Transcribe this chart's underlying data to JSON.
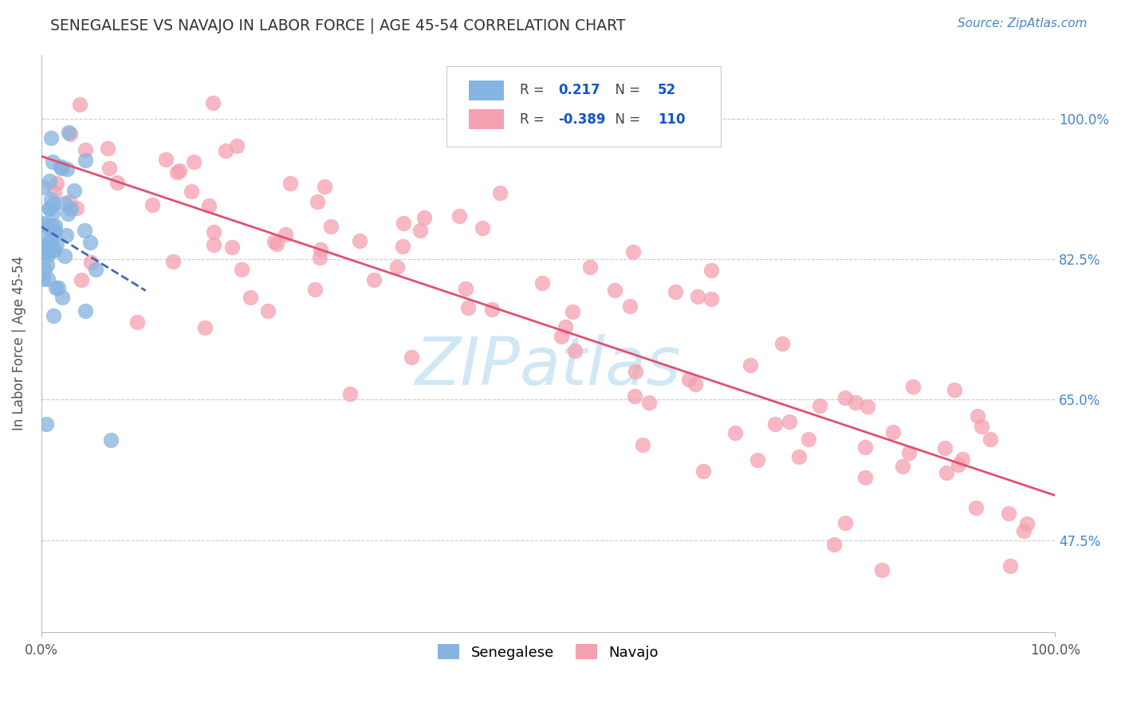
{
  "title": "SENEGALESE VS NAVAJO IN LABOR FORCE | AGE 45-54 CORRELATION CHART",
  "source_text": "Source: ZipAtlas.com",
  "ylabel": "In Labor Force | Age 45-54",
  "xlim": [
    0.0,
    1.0
  ],
  "ylim": [
    0.36,
    1.08
  ],
  "yticks": [
    0.475,
    0.65,
    0.825,
    1.0
  ],
  "ytick_labels": [
    "47.5%",
    "65.0%",
    "82.5%",
    "100.0%"
  ],
  "xtick_labels": [
    "0.0%",
    "100.0%"
  ],
  "xticks": [
    0.0,
    1.0
  ],
  "legend_r_senegalese": "0.217",
  "legend_n_senegalese": "52",
  "legend_r_navajo": "-0.389",
  "legend_n_navajo": "110",
  "blue_color": "#85b4e0",
  "pink_color": "#f5a0b0",
  "trend_blue": "#4466bb",
  "trend_pink": "#e05070",
  "watermark": "ZIPatlas",
  "watermark_color": "#d0e8f5",
  "background_color": "#ffffff",
  "grid_color": "#cccccc",
  "title_color": "#333333",
  "source_color": "#4488cc",
  "legend_r_color": "#1155cc"
}
